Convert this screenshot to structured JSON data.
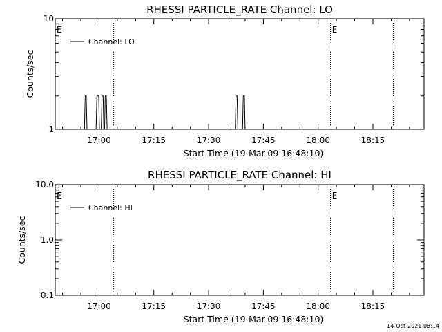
{
  "footer": {
    "timestamp": "14-Oct-2021 08:14"
  },
  "chart_data": [
    {
      "type": "line",
      "title": "RHESSI PARTICLE_RATE Channel: LO",
      "xlabel": "Start Time (19-Mar-09 16:48:10)",
      "ylabel": "Counts/sec",
      "yscale": "log",
      "ylim": [
        1,
        10
      ],
      "y_ticks": [
        1,
        10
      ],
      "y_tick_labels": [
        "1",
        "10"
      ],
      "xlim_minutes_after_1648": [
        0,
        101
      ],
      "x_ticks": [
        {
          "label": "17:00",
          "min": 12
        },
        {
          "label": "17:15",
          "min": 27
        },
        {
          "label": "17:30",
          "min": 42
        },
        {
          "label": "17:45",
          "min": 57
        },
        {
          "label": "18:00",
          "min": 72
        },
        {
          "label": "18:15",
          "min": 87
        }
      ],
      "legend": {
        "placement": "top-left",
        "entries": [
          "Channel: LO"
        ]
      },
      "series": [
        {
          "name": "Channel: LO",
          "points": [
            [
              8.0,
              1
            ],
            [
              8.2,
              2
            ],
            [
              8.5,
              2
            ],
            [
              8.7,
              1
            ],
            [
              11.2,
              1
            ],
            [
              11.4,
              2
            ],
            [
              11.9,
              2
            ],
            [
              12.1,
              1
            ],
            [
              12.6,
              1
            ],
            [
              12.8,
              2
            ],
            [
              13.1,
              2
            ],
            [
              13.3,
              1
            ],
            [
              13.5,
              1
            ],
            [
              13.7,
              2
            ],
            [
              14.0,
              2
            ],
            [
              14.2,
              1
            ],
            [
              49.3,
              1
            ],
            [
              49.5,
              2
            ],
            [
              49.8,
              2
            ],
            [
              50.0,
              1
            ],
            [
              51.3,
              1
            ],
            [
              51.5,
              2
            ],
            [
              51.8,
              2
            ],
            [
              52.0,
              1
            ]
          ]
        }
      ],
      "markers": [
        {
          "type": "vline",
          "style": "dotted",
          "min": 16.0
        },
        {
          "type": "vline",
          "style": "dotted",
          "min": 75.4,
          "label": "E"
        },
        {
          "type": "vline",
          "style": "dotted",
          "min": 92.6
        },
        {
          "type": "label",
          "label": "E",
          "min": 0.2
        }
      ]
    },
    {
      "type": "line",
      "title": "RHESSI PARTICLE_RATE Channel: HI",
      "xlabel": "Start Time (19-Mar-09 16:48:10)",
      "ylabel": "Counts/sec",
      "yscale": "log",
      "ylim": [
        0.1,
        10
      ],
      "y_ticks": [
        0.1,
        1,
        10
      ],
      "y_tick_labels": [
        "0.1",
        "1.0",
        "10.0"
      ],
      "xlim_minutes_after_1648": [
        0,
        101
      ],
      "x_ticks": [
        {
          "label": "17:00",
          "min": 12
        },
        {
          "label": "17:15",
          "min": 27
        },
        {
          "label": "17:30",
          "min": 42
        },
        {
          "label": "17:45",
          "min": 57
        },
        {
          "label": "18:00",
          "min": 72
        },
        {
          "label": "18:15",
          "min": 87
        }
      ],
      "legend": {
        "placement": "top-left",
        "entries": [
          "Channel: HI"
        ]
      },
      "series": [
        {
          "name": "Channel: HI",
          "points": []
        }
      ],
      "markers": [
        {
          "type": "vline",
          "style": "dotted",
          "min": 16.0
        },
        {
          "type": "vline",
          "style": "dotted",
          "min": 75.4,
          "label": "E"
        },
        {
          "type": "vline",
          "style": "dotted",
          "min": 92.6
        },
        {
          "type": "label",
          "label": "E",
          "min": 0.2
        }
      ]
    }
  ]
}
